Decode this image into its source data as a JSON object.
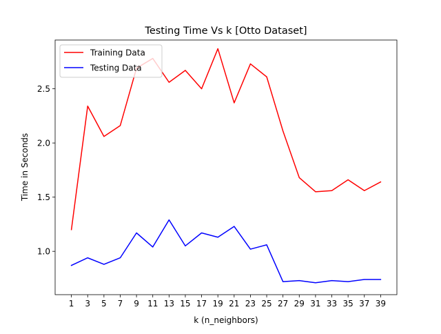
{
  "chart_data": {
    "type": "line",
    "title": "Testing Time Vs k [Otto Dataset]",
    "xlabel": "k (n_neighbors)",
    "ylabel": "Time in Seconds",
    "x": [
      1,
      3,
      5,
      7,
      9,
      11,
      13,
      15,
      17,
      19,
      21,
      23,
      25,
      27,
      29,
      31,
      33,
      35,
      37,
      39
    ],
    "xlim": [
      -1.0,
      41.0
    ],
    "ylim": [
      0.6,
      2.95
    ],
    "xticks": [
      "1",
      "3",
      "5",
      "7",
      "9",
      "11",
      "13",
      "15",
      "17",
      "19",
      "21",
      "23",
      "25",
      "27",
      "29",
      "31",
      "33",
      "35",
      "37",
      "39"
    ],
    "yticks": [
      1.0,
      1.5,
      2.0,
      2.5
    ],
    "ytick_labels": [
      "1.0",
      "1.5",
      "2.0",
      "2.5"
    ],
    "grid": false,
    "legend_position": "top-left",
    "series": [
      {
        "name": "Training Data",
        "color": "#ff0000",
        "values": [
          1.2,
          2.34,
          2.06,
          2.16,
          2.69,
          2.78,
          2.56,
          2.67,
          2.5,
          2.87,
          2.37,
          2.73,
          2.61,
          2.11,
          1.68,
          1.55,
          1.56,
          1.66,
          1.56,
          1.64
        ]
      },
      {
        "name": "Testing Data",
        "color": "#0000ff",
        "values": [
          0.87,
          0.94,
          0.88,
          0.94,
          1.17,
          1.04,
          1.29,
          1.05,
          1.17,
          1.13,
          1.23,
          1.02,
          1.06,
          0.72,
          0.73,
          0.71,
          0.73,
          0.72,
          0.74,
          0.74
        ]
      }
    ]
  }
}
